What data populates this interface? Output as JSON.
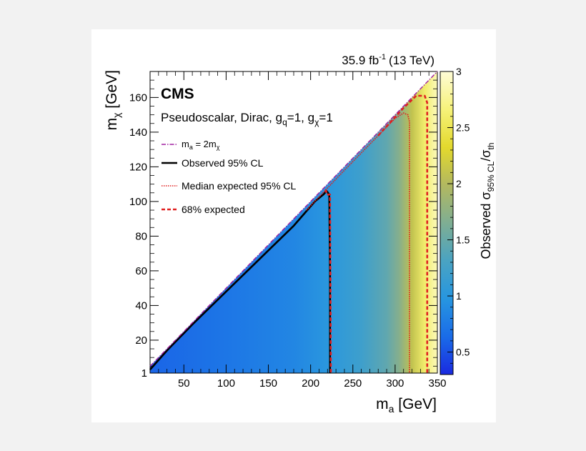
{
  "chart_data": {
    "type": "heatmap",
    "header_lumi": "35.9 fb",
    "header_lumi_exp": "-1",
    "header_energy": "(13 TeV)",
    "experiment": "CMS",
    "model_text": "Pseudoscalar, Dirac, g",
    "model_sub_q": "q",
    "model_eq1": "=1, g",
    "model_sub_chi": "χ",
    "model_eq2": "=1",
    "xlabel_main": "m",
    "xlabel_sub": "a",
    "xlabel_unit": " [GeV]",
    "ylabel_main": "m",
    "ylabel_sub": "χ",
    "ylabel_unit": " [GeV]",
    "zlabel_main": "Observed σ",
    "zlabel_sub": "95% CL",
    "zlabel_mid": "/σ",
    "zlabel_sub2": "th",
    "xlim": [
      10,
      350
    ],
    "ylim": [
      1,
      175
    ],
    "zlim": [
      0.3,
      3
    ],
    "x_ticks": [
      50,
      100,
      150,
      200,
      250,
      300,
      350
    ],
    "y_ticks": [
      1,
      20,
      40,
      60,
      80,
      100,
      120,
      140,
      160
    ],
    "z_ticks": [
      0.5,
      1,
      1.5,
      2,
      2.5,
      3
    ],
    "tick_labels": {
      "x": [
        "50",
        "100",
        "150",
        "200",
        "250",
        "300",
        "350"
      ],
      "y": [
        "1",
        "20",
        "40",
        "60",
        "80",
        "100",
        "120",
        "140",
        "160"
      ],
      "z": [
        "0.5",
        "1",
        "1.5",
        "2",
        "2.5",
        "3"
      ]
    },
    "heatmap_ratio_profile": [
      [
        10,
        0.6
      ],
      [
        100,
        0.72
      ],
      [
        180,
        0.85
      ],
      [
        220,
        1.0
      ],
      [
        260,
        1.2
      ],
      [
        290,
        1.45
      ],
      [
        305,
        1.7
      ],
      [
        320,
        2.1
      ],
      [
        335,
        2.6
      ],
      [
        350,
        2.9
      ]
    ],
    "legend": [
      {
        "name_main": "m",
        "name_sub": "a",
        "name_rest": " = 2m",
        "name_sub2": "χ",
        "style": "dash-dot",
        "color": "#a020a0"
      },
      {
        "name_main": "Observed 95% CL",
        "style": "solid",
        "color": "#000000"
      },
      {
        "name_main": "Median expected 95% CL",
        "style": "dotted",
        "color": "#e02020"
      },
      {
        "name_main": "68% expected",
        "style": "dashed",
        "color": "#e02020"
      }
    ],
    "series": [
      {
        "name": "Observed 95% CL",
        "points": [
          [
            10,
            3
          ],
          [
            30,
            14
          ],
          [
            60,
            29
          ],
          [
            100,
            48
          ],
          [
            140,
            67
          ],
          [
            180,
            86
          ],
          [
            205,
            100
          ],
          [
            215,
            104
          ],
          [
            219,
            106
          ],
          [
            222,
            104
          ],
          [
            223,
            60
          ],
          [
            223,
            1
          ]
        ]
      },
      {
        "name": "Median expected 95% CL",
        "points": [
          [
            195,
            95
          ],
          [
            240,
            118
          ],
          [
            280,
            138
          ],
          [
            300,
            148
          ],
          [
            310,
            151
          ],
          [
            315,
            150
          ],
          [
            317,
            146
          ],
          [
            317,
            1
          ]
        ]
      },
      {
        "name": "68% expected (lower)",
        "points": [
          [
            218,
            107
          ],
          [
            219,
            104
          ],
          [
            223,
            104
          ],
          [
            224,
            1
          ]
        ]
      },
      {
        "name": "68% expected (upper)",
        "points": [
          [
            280,
            138
          ],
          [
            310,
            154
          ],
          [
            325,
            161
          ],
          [
            335,
            161
          ],
          [
            338,
            157
          ],
          [
            338,
            1
          ]
        ]
      },
      {
        "name": "m_a = 2m_chi",
        "points": [
          [
            10,
            5
          ],
          [
            350,
            175
          ]
        ]
      }
    ],
    "colors": {
      "observed": "#000000",
      "expected": "#e02020",
      "kinematic": "#a020a0",
      "palette": [
        "#1a2ae0",
        "#1a6ce8",
        "#2796e0",
        "#4aa3c2",
        "#7fae93",
        "#b2b860",
        "#e3d92d",
        "#f6f27a",
        "#fffcd6"
      ]
    }
  }
}
